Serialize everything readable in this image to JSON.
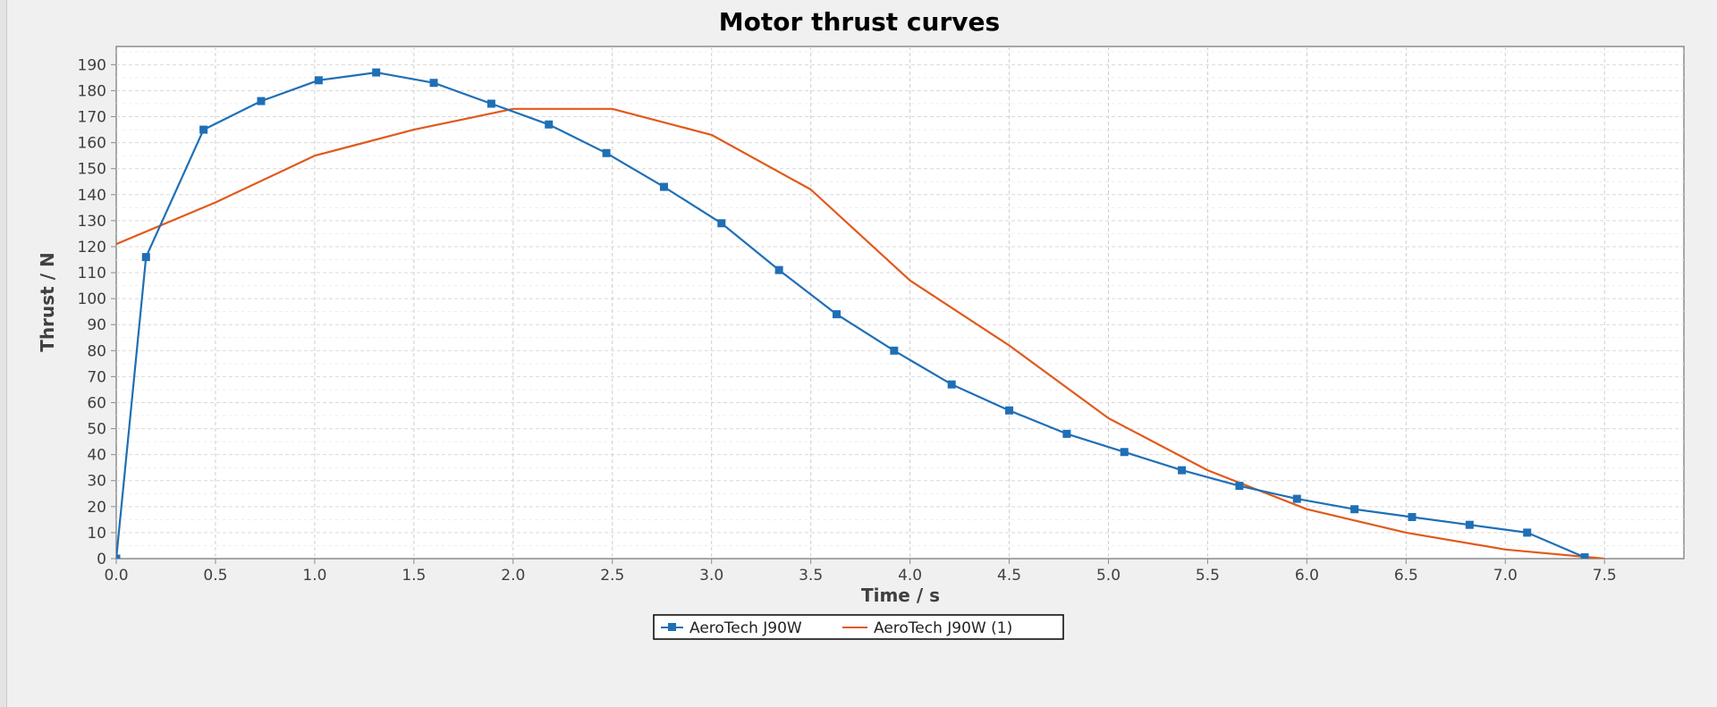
{
  "chart_data": {
    "type": "line",
    "title": "Motor thrust curves",
    "xlabel": "Time / s",
    "ylabel": "Thrust / N",
    "xlim": [
      0,
      7.9
    ],
    "ylim": [
      0,
      197
    ],
    "xticks": [
      0.0,
      0.5,
      1.0,
      1.5,
      2.0,
      2.5,
      3.0,
      3.5,
      4.0,
      4.5,
      5.0,
      5.5,
      6.0,
      6.5,
      7.0,
      7.5
    ],
    "yticks": [
      0,
      10,
      20,
      30,
      40,
      50,
      60,
      70,
      80,
      90,
      100,
      110,
      120,
      130,
      140,
      150,
      160,
      170,
      180,
      190
    ],
    "grid": true,
    "legend_position": "bottom-center",
    "series": [
      {
        "name": "AeroTech J90W",
        "color": "#1f6fb5",
        "marker": "square",
        "x": [
          0.0,
          0.15,
          0.44,
          0.73,
          1.02,
          1.31,
          1.6,
          1.89,
          2.18,
          2.47,
          2.76,
          3.05,
          3.34,
          3.63,
          3.92,
          4.21,
          4.5,
          4.79,
          5.08,
          5.37,
          5.66,
          5.95,
          6.24,
          6.53,
          6.82,
          7.11,
          7.4
        ],
        "y": [
          0,
          116,
          165,
          176,
          184,
          187,
          183,
          175,
          167,
          156,
          143,
          129,
          111,
          94,
          80,
          67,
          57,
          48,
          41,
          34,
          28,
          23,
          19,
          16,
          13,
          10,
          0.5
        ]
      },
      {
        "name": "AeroTech J90W (1)",
        "color": "#e05a1c",
        "marker": "none",
        "x": [
          0.0,
          0.5,
          1.0,
          1.5,
          2.0,
          2.5,
          3.0,
          3.5,
          4.0,
          4.5,
          5.0,
          5.5,
          6.0,
          6.5,
          7.0,
          7.5
        ],
        "y": [
          121,
          137,
          155,
          165,
          173,
          173,
          163,
          142,
          107,
          82,
          54,
          34,
          19,
          10,
          3.5,
          0
        ]
      }
    ]
  }
}
